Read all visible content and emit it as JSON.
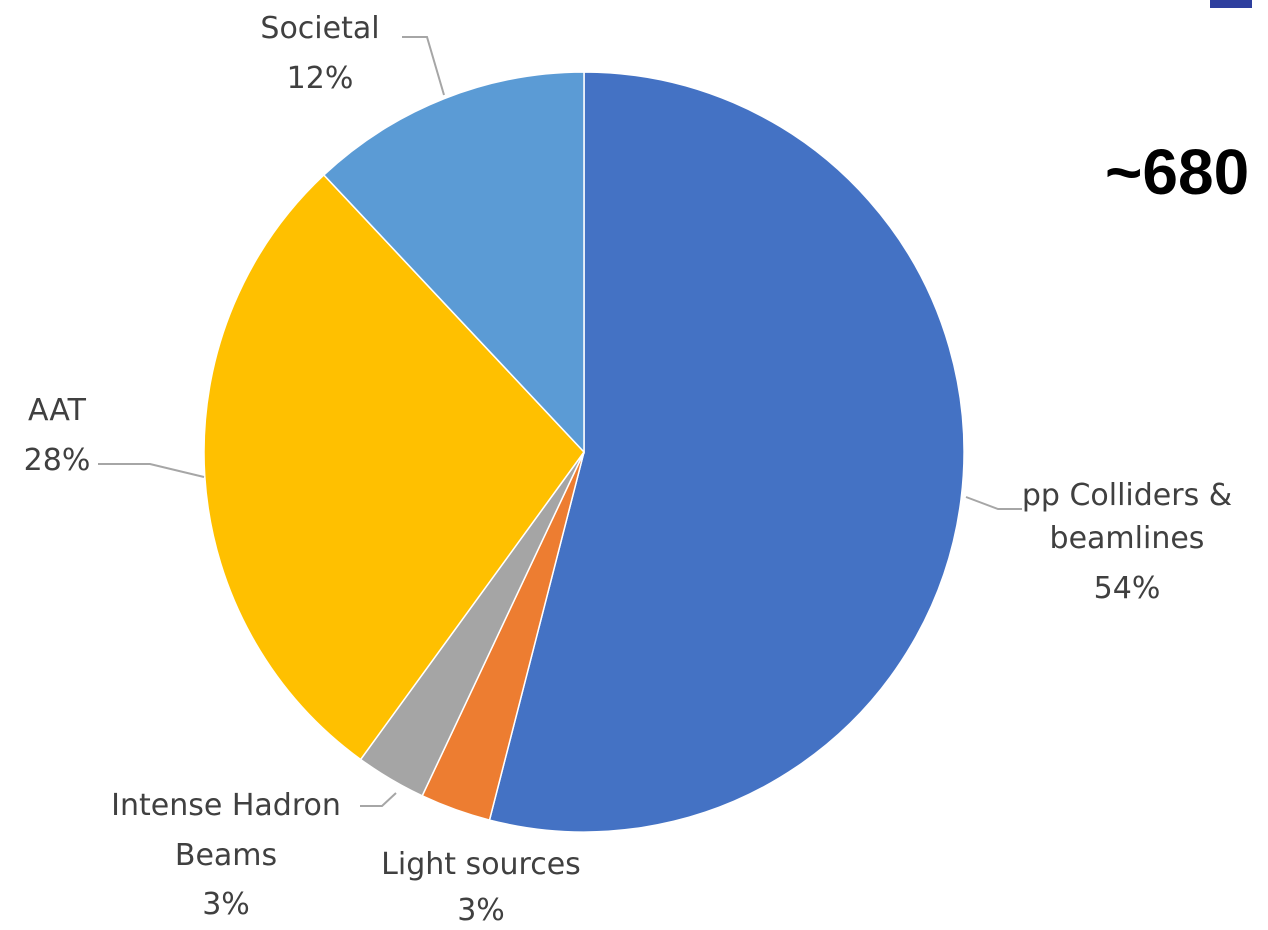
{
  "headline": "~680",
  "colors": {
    "corner_mark": "#2E3F9E",
    "leader_line": "#A6A6A6",
    "label_text": "#404040"
  },
  "chart_data": {
    "type": "pie",
    "start_angle_deg": 0,
    "direction": "clockwise",
    "slices": [
      {
        "name": "pp Colliders & beamlines",
        "label_lines": [
          "pp Colliders &",
          "beamlines"
        ],
        "value": 54,
        "pct_label": "54%",
        "color": "#4472C4"
      },
      {
        "name": "Light sources",
        "label_lines": [
          "Light sources"
        ],
        "value": 3,
        "pct_label": "3%",
        "color": "#ED7D31"
      },
      {
        "name": "Intense Hadron Beams",
        "label_lines": [
          "Intense Hadron",
          "Beams"
        ],
        "value": 3,
        "pct_label": "3%",
        "color": "#A5A5A5"
      },
      {
        "name": "AAT",
        "label_lines": [
          "AAT"
        ],
        "value": 28,
        "pct_label": "28%",
        "color": "#FFC000"
      },
      {
        "name": "Societal",
        "label_lines": [
          "Societal"
        ],
        "value": 12,
        "pct_label": "12%",
        "color": "#5B9BD5"
      }
    ]
  }
}
